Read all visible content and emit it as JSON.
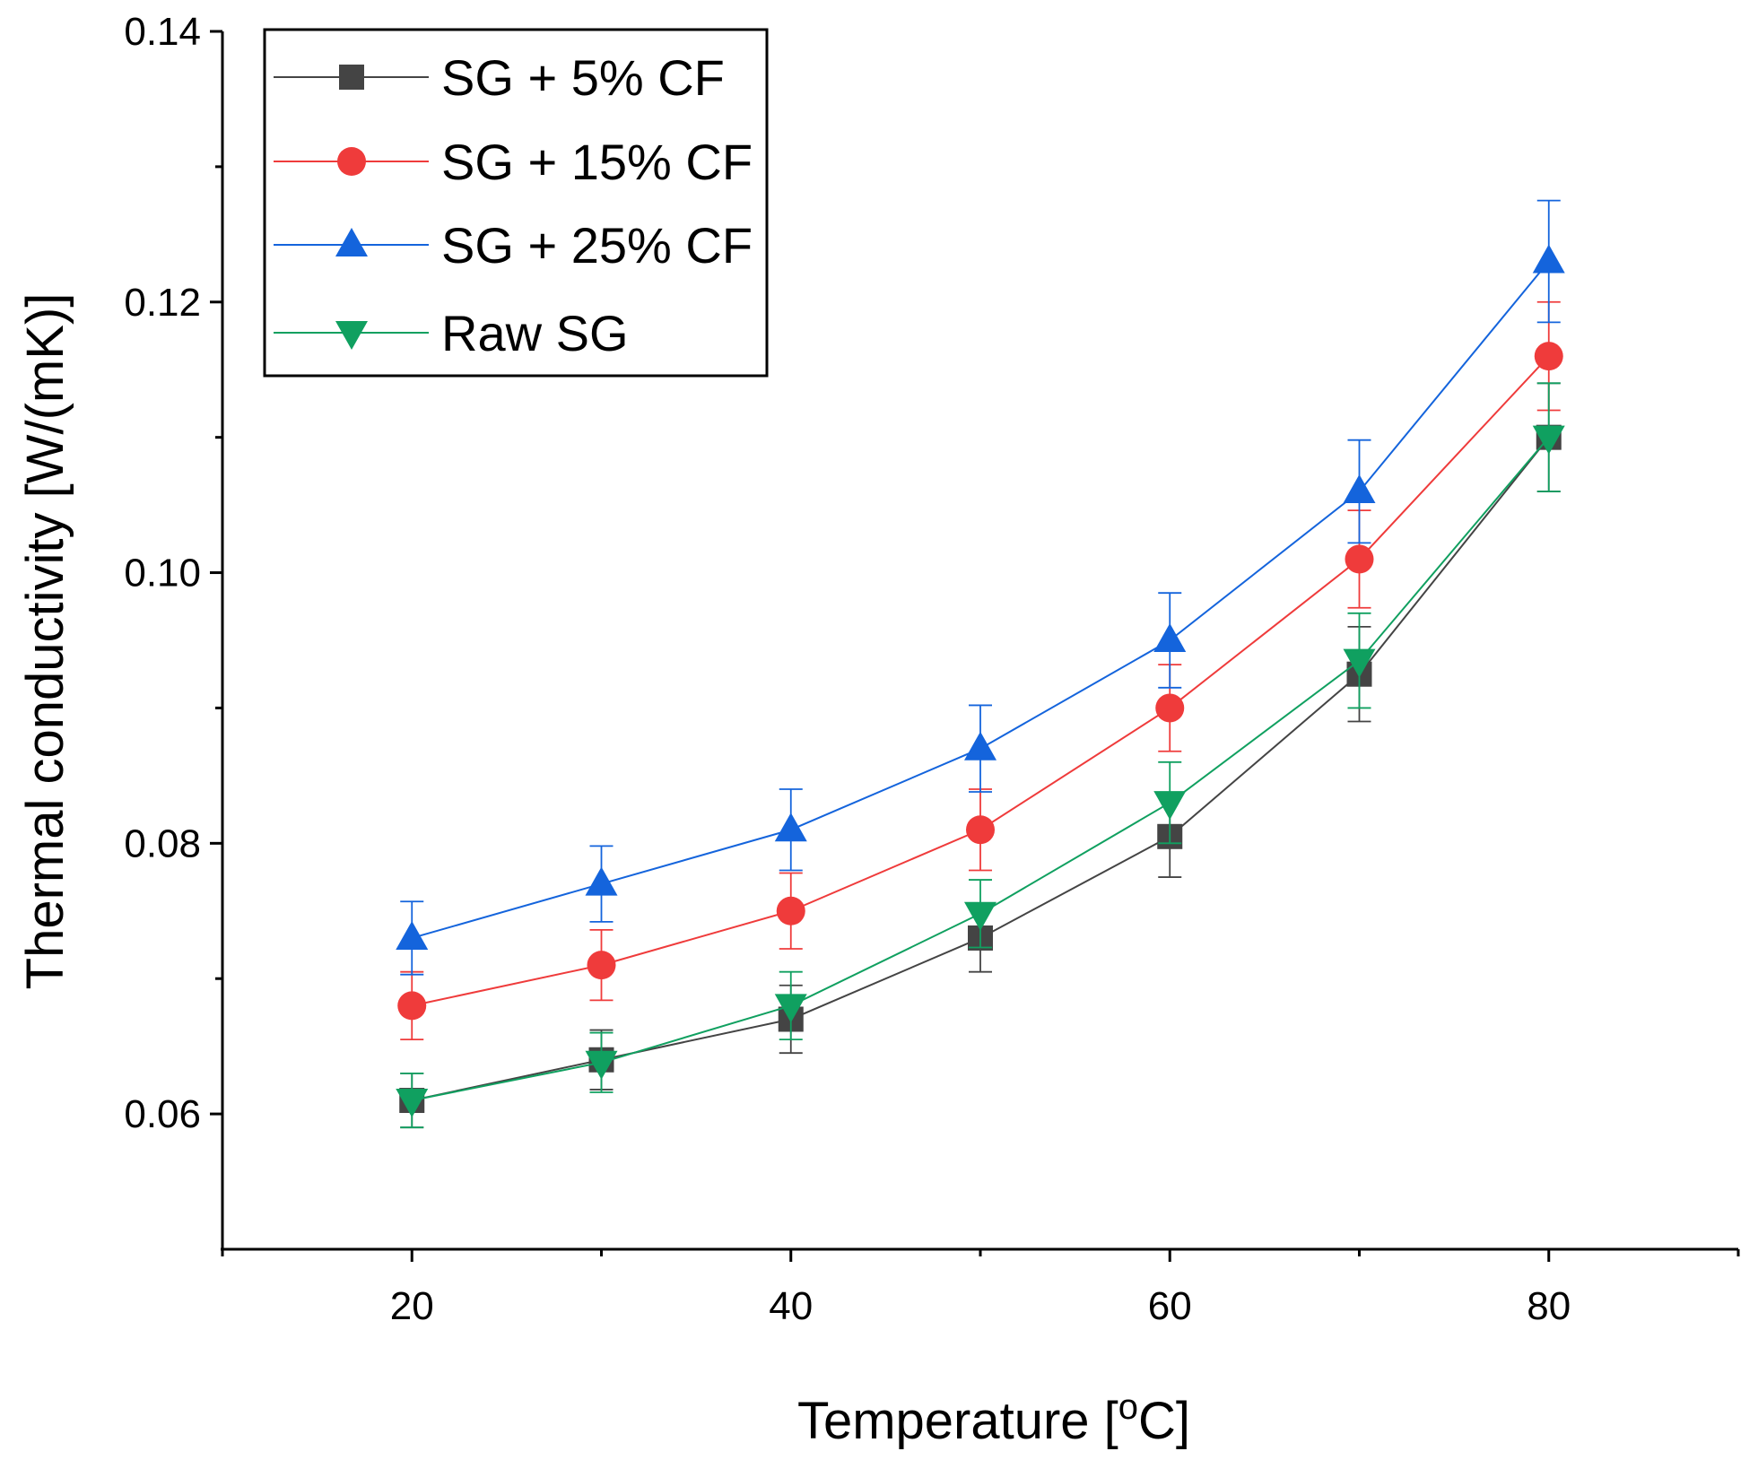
{
  "chart_data": {
    "type": "line",
    "xlabel_main": "Temperature [",
    "xlabel_sup": "o",
    "xlabel_end": "C]",
    "ylabel": "Thermal conductivity [W/(mK)]",
    "xlim": [
      10,
      90
    ],
    "ylim": [
      0.05,
      0.14
    ],
    "x_ticks": [
      20,
      40,
      60,
      80
    ],
    "x_tick_labels": [
      "20",
      "40",
      "60",
      "80"
    ],
    "x_minor_ticks": [
      10,
      30,
      50,
      70,
      90
    ],
    "y_ticks": [
      0.06,
      0.08,
      0.1,
      0.12,
      0.14
    ],
    "y_tick_labels": [
      "0.06",
      "0.08",
      "0.10",
      "0.12",
      "0.14"
    ],
    "y_minor_ticks": [
      0.07,
      0.09,
      0.11,
      0.13
    ],
    "grid": false,
    "legend_position": "top-left",
    "x": [
      20,
      30,
      40,
      50,
      60,
      70,
      80
    ],
    "series": [
      {
        "name": "SG + 5% CF",
        "marker": "square",
        "color": "#444444",
        "values": [
          0.061,
          0.064,
          0.067,
          0.073,
          0.0805,
          0.0925,
          0.11
        ],
        "errors": [
          0.002,
          0.0022,
          0.0025,
          0.0025,
          0.003,
          0.0035,
          0.004
        ]
      },
      {
        "name": "SG + 15% CF",
        "marker": "circle",
        "color": "#EF3B3B",
        "values": [
          0.068,
          0.071,
          0.075,
          0.081,
          0.09,
          0.101,
          0.116
        ],
        "errors": [
          0.0025,
          0.0026,
          0.0028,
          0.003,
          0.0032,
          0.0036,
          0.004
        ]
      },
      {
        "name": "SG + 25% CF",
        "marker": "triangle-up",
        "color": "#1464DC",
        "values": [
          0.073,
          0.077,
          0.081,
          0.087,
          0.095,
          0.106,
          0.123
        ],
        "errors": [
          0.0027,
          0.0028,
          0.003,
          0.0032,
          0.0035,
          0.0038,
          0.0045
        ]
      },
      {
        "name": "Raw SG",
        "marker": "triangle-down",
        "color": "#10A060",
        "values": [
          0.061,
          0.0638,
          0.068,
          0.0748,
          0.083,
          0.0935,
          0.11
        ],
        "errors": [
          0.002,
          0.0022,
          0.0025,
          0.0025,
          0.003,
          0.0035,
          0.004
        ]
      }
    ]
  }
}
